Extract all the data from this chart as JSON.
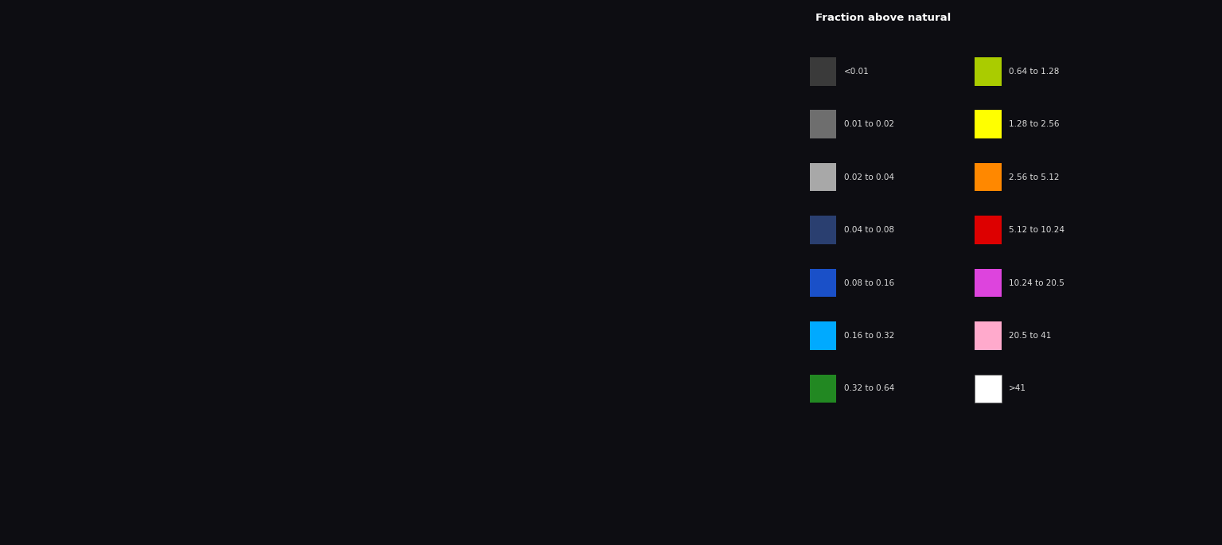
{
  "background_color": "#0d0d12",
  "title": "Fraction above natural",
  "title_color": "#ffffff",
  "title_fontsize": 9.5,
  "legend_items_col1": [
    {
      "label": "<0.01",
      "color": "#3a3a3a"
    },
    {
      "label": "0.01 to 0.02",
      "color": "#6e6e6e"
    },
    {
      "label": "0.02 to 0.04",
      "color": "#a8a8a8"
    },
    {
      "label": "0.04 to 0.08",
      "color": "#2a3f70"
    },
    {
      "label": "0.08 to 0.16",
      "color": "#1a50c8"
    },
    {
      "label": "0.16 to 0.32",
      "color": "#00aaff"
    },
    {
      "label": "0.32 to 0.64",
      "color": "#228822"
    }
  ],
  "legend_items_col2": [
    {
      "label": "0.64 to 1.28",
      "color": "#aacc00"
    },
    {
      "label": "1.28 to 2.56",
      "color": "#ffff00"
    },
    {
      "label": "2.56 to 5.12",
      "color": "#ff8800"
    },
    {
      "label": "5.12 to 10.24",
      "color": "#dd0000"
    },
    {
      "label": "10.24 to 20.5",
      "color": "#dd44dd"
    },
    {
      "label": "20.5 to 41",
      "color": "#ffaacc"
    },
    {
      "label": ">41",
      "color": "#ffffff"
    }
  ],
  "label_color": "#dddddd",
  "label_fontsize": 7.5
}
